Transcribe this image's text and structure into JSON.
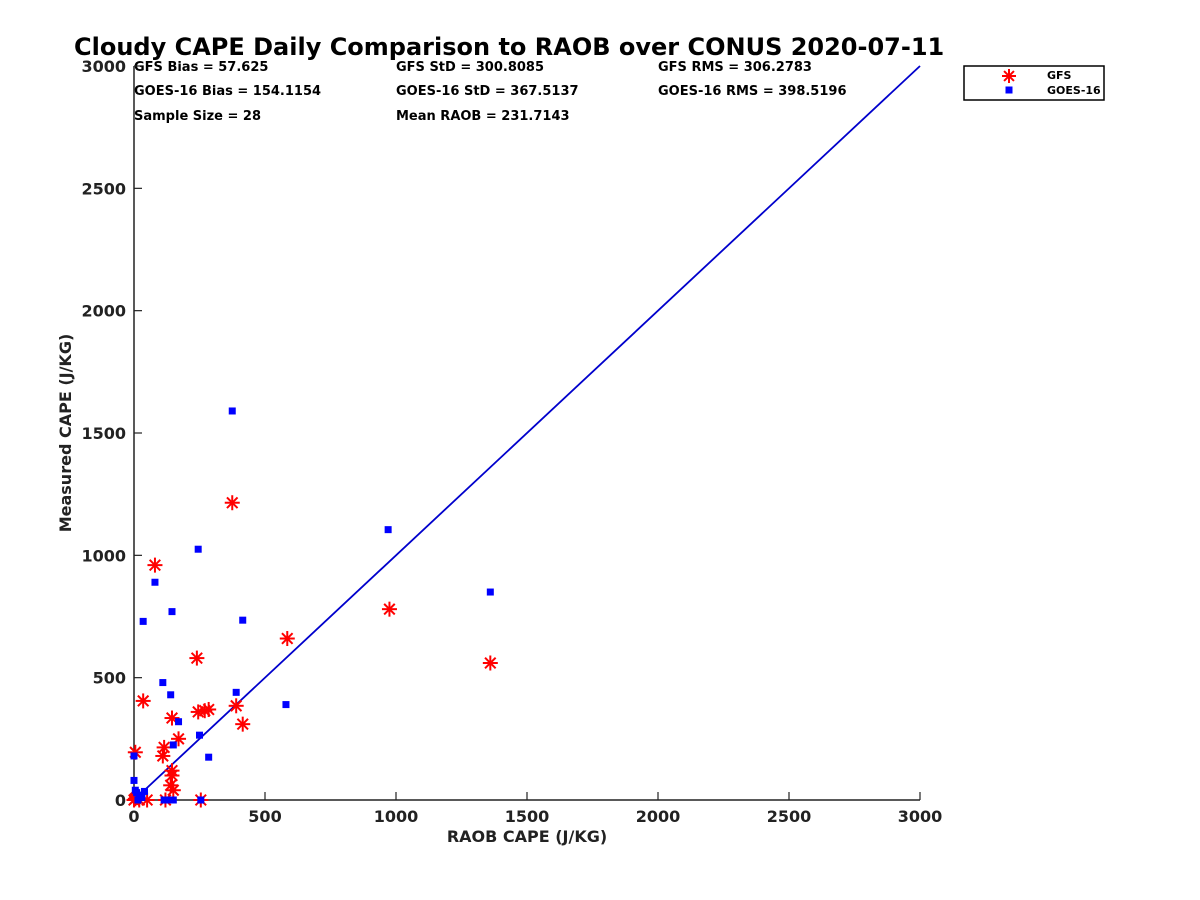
{
  "chart_data": {
    "type": "scatter",
    "title": "Cloudy CAPE Daily Comparison to RAOB over CONUS 2020-07-11",
    "xlabel": "RAOB CAPE (J/KG)",
    "ylabel": "Measured CAPE (J/KG)",
    "xlim": [
      0,
      3000
    ],
    "ylim": [
      0,
      3000
    ],
    "xticks": [
      0,
      500,
      1000,
      1500,
      2000,
      2500,
      3000
    ],
    "yticks": [
      0,
      500,
      1000,
      1500,
      2000,
      2500,
      3000
    ],
    "grid": false,
    "legend_position": "top-right",
    "reference_line": {
      "x": [
        0,
        3000
      ],
      "y": [
        0,
        3000
      ],
      "color": "#0000cc"
    },
    "stats": [
      "GFS Bias = 57.625",
      "GOES-16 Bias = 154.1154",
      "Sample Size = 28",
      "GFS StD = 300.8085",
      "GOES-16 StD = 367.5137",
      "Mean RAOB = 231.7143",
      "GFS RMS = 306.2783",
      "GOES-16 RMS = 398.5196"
    ],
    "series": [
      {
        "name": "GFS",
        "marker": "asterisk",
        "color": "#ff0000",
        "points": [
          [
            0,
            0
          ],
          [
            5,
            5
          ],
          [
            10,
            10
          ],
          [
            20,
            0
          ],
          [
            50,
            0
          ],
          [
            5,
            195
          ],
          [
            35,
            405
          ],
          [
            80,
            960
          ],
          [
            110,
            180
          ],
          [
            115,
            215
          ],
          [
            120,
            0
          ],
          [
            140,
            60
          ],
          [
            145,
            100
          ],
          [
            145,
            120
          ],
          [
            150,
            40
          ],
          [
            145,
            335
          ],
          [
            170,
            250
          ],
          [
            240,
            580
          ],
          [
            245,
            360
          ],
          [
            255,
            0
          ],
          [
            270,
            365
          ],
          [
            285,
            370
          ],
          [
            375,
            1215
          ],
          [
            390,
            385
          ],
          [
            415,
            310
          ],
          [
            585,
            660
          ],
          [
            975,
            780
          ],
          [
            1360,
            560
          ]
        ]
      },
      {
        "name": "GOES-16",
        "marker": "square",
        "color": "#0000ff",
        "points": [
          [
            0,
            180
          ],
          [
            0,
            80
          ],
          [
            5,
            40
          ],
          [
            10,
            30
          ],
          [
            15,
            0
          ],
          [
            20,
            20
          ],
          [
            30,
            10
          ],
          [
            35,
            730
          ],
          [
            40,
            35
          ],
          [
            80,
            890
          ],
          [
            110,
            480
          ],
          [
            115,
            0
          ],
          [
            130,
            0
          ],
          [
            140,
            430
          ],
          [
            145,
            770
          ],
          [
            150,
            0
          ],
          [
            150,
            225
          ],
          [
            170,
            320
          ],
          [
            245,
            1025
          ],
          [
            250,
            265
          ],
          [
            255,
            0
          ],
          [
            285,
            175
          ],
          [
            375,
            1590
          ],
          [
            390,
            440
          ],
          [
            415,
            735
          ],
          [
            580,
            390
          ],
          [
            970,
            1105
          ],
          [
            1360,
            850
          ]
        ]
      }
    ]
  }
}
